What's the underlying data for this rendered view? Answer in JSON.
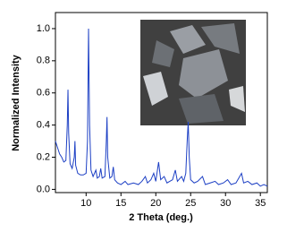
{
  "chart_data": {
    "type": "line",
    "xlabel": "2 Theta (deg.)",
    "ylabel": "Normalized Intensity",
    "x": [
      5.6,
      5.9,
      6.2,
      6.5,
      6.8,
      7.1,
      7.3,
      7.4,
      7.5,
      7.7,
      8.0,
      8.3,
      8.4,
      8.5,
      8.8,
      9.2,
      9.6,
      10.0,
      10.2,
      10.35,
      10.5,
      10.7,
      11.0,
      11.4,
      11.6,
      11.9,
      12.1,
      12.3,
      12.7,
      12.9,
      13.0,
      13.1,
      13.4,
      13.7,
      13.9,
      14.1,
      14.5,
      15.0,
      15.6,
      16.0,
      16.8,
      17.5,
      18.0,
      18.5,
      18.8,
      19.3,
      19.7,
      20.0,
      20.4,
      20.7,
      21.2,
      21.6,
      22.0,
      22.4,
      22.8,
      23.1,
      23.7,
      24.0,
      24.3,
      24.5,
      24.65,
      24.8,
      25.0,
      25.5,
      26.0,
      26.7,
      27.1,
      27.8,
      28.5,
      29.0,
      29.7,
      30.3,
      30.8,
      31.5,
      32.3,
      32.6,
      33.2,
      33.8,
      34.5,
      35.0,
      35.5,
      36.0
    ],
    "values": [
      0.3,
      0.26,
      0.22,
      0.2,
      0.17,
      0.18,
      0.4,
      0.62,
      0.35,
      0.16,
      0.13,
      0.2,
      0.3,
      0.15,
      0.1,
      0.09,
      0.09,
      0.1,
      0.3,
      1.0,
      0.4,
      0.12,
      0.08,
      0.12,
      0.07,
      0.08,
      0.13,
      0.07,
      0.08,
      0.3,
      0.45,
      0.2,
      0.07,
      0.08,
      0.14,
      0.06,
      0.04,
      0.03,
      0.05,
      0.03,
      0.04,
      0.03,
      0.05,
      0.08,
      0.04,
      0.06,
      0.1,
      0.05,
      0.17,
      0.06,
      0.08,
      0.04,
      0.05,
      0.06,
      0.12,
      0.05,
      0.08,
      0.05,
      0.1,
      0.3,
      0.42,
      0.2,
      0.06,
      0.04,
      0.05,
      0.08,
      0.03,
      0.04,
      0.05,
      0.03,
      0.04,
      0.06,
      0.03,
      0.04,
      0.1,
      0.04,
      0.05,
      0.03,
      0.04,
      0.02,
      0.03,
      0.02
    ],
    "color": "#1c3fc4",
    "xlim": [
      5.6,
      36
    ],
    "ylim": [
      -0.02,
      1.1
    ],
    "xticks": [
      10,
      15,
      20,
      25,
      30,
      35
    ],
    "yticks": [
      {
        "value": 0,
        "label": "0.0"
      },
      0.2,
      0.4,
      0.6,
      0.8,
      {
        "value": 1,
        "label": "1.0"
      }
    ]
  }
}
